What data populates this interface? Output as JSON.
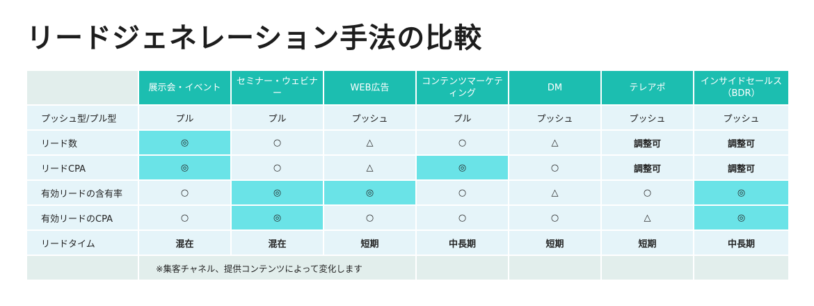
{
  "title": "リードジェネレーション手法の比較",
  "columns": [
    "展示会・イベント",
    "セミナー・ウェビナー",
    "WEB広告",
    "コンテンツマーケティング",
    "DM",
    "テレアポ",
    "インサイドセールス（BDR）"
  ],
  "rows": [
    {
      "label": "プッシュ型/プル型",
      "cells": [
        "プル",
        "プル",
        "プッシュ",
        "プル",
        "プッシュ",
        "プッシュ",
        "プッシュ"
      ]
    },
    {
      "label": "リード数",
      "cells": [
        "◎",
        "○",
        "△",
        "○",
        "△",
        "調整可",
        "調整可"
      ]
    },
    {
      "label": "リードCPA",
      "cells": [
        "◎",
        "○",
        "△",
        "◎",
        "○",
        "調整可",
        "調整可"
      ]
    },
    {
      "label": "有効リードの含有率",
      "cells": [
        "○",
        "◎",
        "◎",
        "○",
        "△",
        "○",
        "◎"
      ]
    },
    {
      "label": "有効リードのCPA",
      "cells": [
        "○",
        "◎",
        "○",
        "○",
        "○",
        "△",
        "◎"
      ]
    },
    {
      "label": "リードタイム",
      "cells": [
        "混在",
        "混在",
        "短期",
        "中長期",
        "短期",
        "短期",
        "中長期"
      ]
    }
  ],
  "footnote": "※集客チャネル、提供コンテンツによって変化します",
  "colors": {
    "header": "#1cbeb0",
    "highlight": "#6ae3e7",
    "cell": "#e5f4f9",
    "corner": "#e2eeec"
  }
}
